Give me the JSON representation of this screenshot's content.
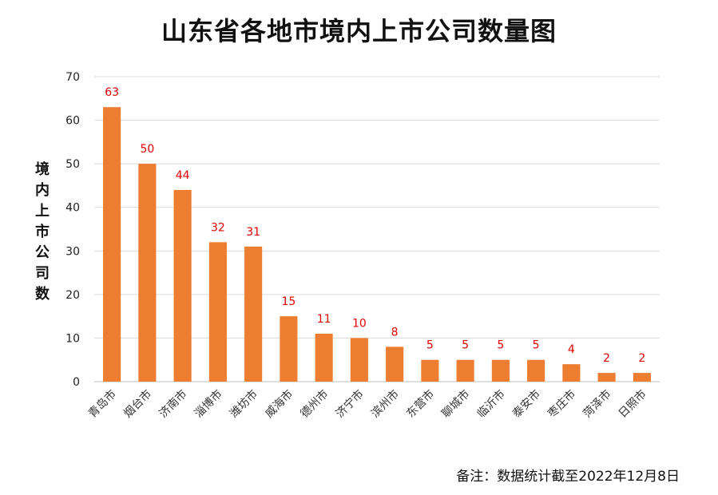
{
  "chart_data": {
    "type": "bar",
    "title": "山东省各地市境内上市公司数量图",
    "ylabel": "境内上市公司数",
    "xlabel": "",
    "ylim": [
      0,
      70
    ],
    "yticks": [
      0,
      10,
      20,
      30,
      40,
      50,
      60,
      70
    ],
    "grid": true,
    "categories": [
      "青岛市",
      "烟台市",
      "济南市",
      "淄博市",
      "潍坊市",
      "威海市",
      "德州市",
      "济宁市",
      "滨州市",
      "东营市",
      "聊城市",
      "临沂市",
      "泰安市",
      "枣庄市",
      "菏泽市",
      "日照市"
    ],
    "values": [
      63,
      50,
      44,
      32,
      31,
      15,
      11,
      10,
      8,
      5,
      5,
      5,
      5,
      4,
      2,
      2
    ],
    "bar_color": "#ed7d31",
    "label_color": "#e00000",
    "note": "备注：数据统计截至2022年12月8日"
  }
}
